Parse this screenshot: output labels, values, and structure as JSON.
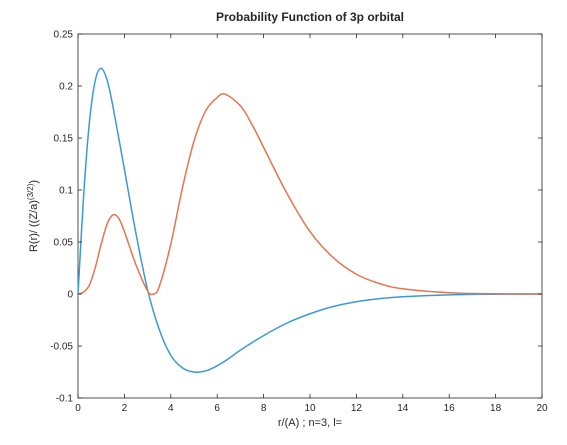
{
  "chart_data": {
    "type": "line",
    "title": "Probability Function of 3p orbital",
    "xlabel": "r/(A) ; n=3, l=",
    "ylabel": "R(r)/ ((Z/a)^(3/2))",
    "ylabel_parts": {
      "base": "R(r)/ ((Z/a)",
      "sup": "(3/2)",
      "tail": ")"
    },
    "xlim": [
      0,
      20
    ],
    "ylim": [
      -0.1,
      0.25
    ],
    "x_ticks": [
      "0",
      "2",
      "4",
      "6",
      "8",
      "10",
      "12",
      "14",
      "16",
      "18",
      "20"
    ],
    "y_ticks": [
      "-0.1",
      "-0.05",
      "0",
      "0.05",
      "0.1",
      "0.15",
      "0.2",
      "0.25"
    ],
    "grid": false,
    "colors": {
      "series1": "#3b9ad6",
      "series2": "#e5754f",
      "axis": "#262626"
    },
    "series": [
      {
        "color": "#3b9ad6",
        "x": [
          0,
          0.25,
          0.5,
          0.75,
          1.0,
          1.25,
          1.5,
          2.0,
          2.5,
          3.0,
          3.5,
          4.0,
          4.5,
          5.0,
          5.5,
          6.0,
          6.5,
          7.0,
          8.0,
          9.0,
          10.0,
          11.0,
          12.0,
          13.0,
          14.0,
          16.0,
          18.0,
          20.0
        ],
        "y": [
          0,
          0.097,
          0.167,
          0.206,
          0.217,
          0.206,
          0.181,
          0.12,
          0.058,
          0.004,
          -0.034,
          -0.059,
          -0.071,
          -0.075,
          -0.074,
          -0.069,
          -0.062,
          -0.054,
          -0.04,
          -0.028,
          -0.019,
          -0.012,
          -0.0074,
          -0.0044,
          -0.0026,
          -0.0008,
          -0.0002,
          0
        ]
      },
      {
        "color": "#e5754f",
        "x": [
          0,
          0.25,
          0.5,
          0.75,
          1.0,
          1.25,
          1.5,
          1.75,
          2.0,
          2.5,
          3.0,
          3.25,
          3.5,
          4.0,
          4.5,
          5.0,
          5.5,
          6.0,
          6.35,
          7.0,
          7.5,
          8.0,
          9.0,
          10.0,
          11.0,
          12.0,
          13.0,
          14.0,
          16.0,
          18.0,
          20.0
        ],
        "y": [
          0,
          0.002,
          0.009,
          0.026,
          0.048,
          0.067,
          0.076,
          0.073,
          0.06,
          0.028,
          0.003,
          0,
          0.007,
          0.048,
          0.102,
          0.147,
          0.176,
          0.189,
          0.192,
          0.181,
          0.163,
          0.141,
          0.097,
          0.06,
          0.035,
          0.019,
          0.01,
          0.005,
          0.0012,
          0.0002,
          0
        ]
      }
    ]
  }
}
